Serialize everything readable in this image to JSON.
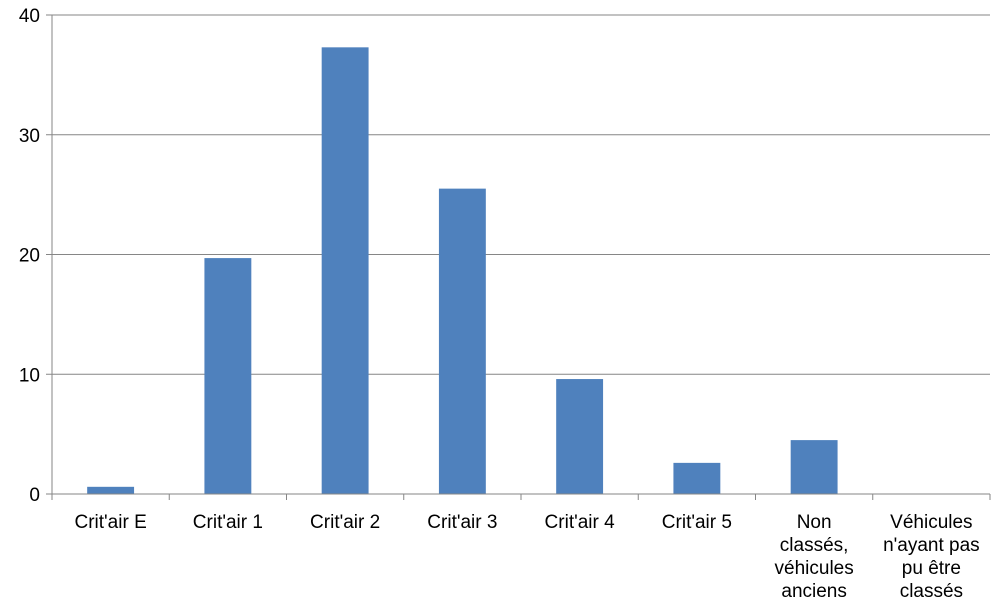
{
  "chart_data": {
    "type": "bar",
    "categories": [
      "Crit'air E",
      "Crit'air 1",
      "Crit'air 2",
      "Crit'air 3",
      "Crit'air 4",
      "Crit'air 5",
      "Non classés, véhicules anciens",
      "Véhicules n'ayant pas pu être classés"
    ],
    "category_label_lines": [
      [
        "Crit'air E"
      ],
      [
        "Crit'air 1"
      ],
      [
        "Crit'air 2"
      ],
      [
        "Crit'air 3"
      ],
      [
        "Crit'air 4"
      ],
      [
        "Crit'air 5"
      ],
      [
        "Non",
        "classés,",
        "véhicules",
        "anciens"
      ],
      [
        "Véhicules",
        "n'ayant pas",
        "pu être",
        "classés"
      ]
    ],
    "values": [
      0.6,
      19.7,
      37.3,
      25.5,
      9.6,
      2.6,
      4.5,
      0
    ],
    "ylim": [
      0,
      40
    ],
    "yticks": [
      0,
      10,
      20,
      30,
      40
    ],
    "title": "",
    "xlabel": "",
    "ylabel": "",
    "grid": true,
    "colors": {
      "bar": "#4f81bd",
      "grid": "#868686",
      "axis": "#868686"
    }
  }
}
